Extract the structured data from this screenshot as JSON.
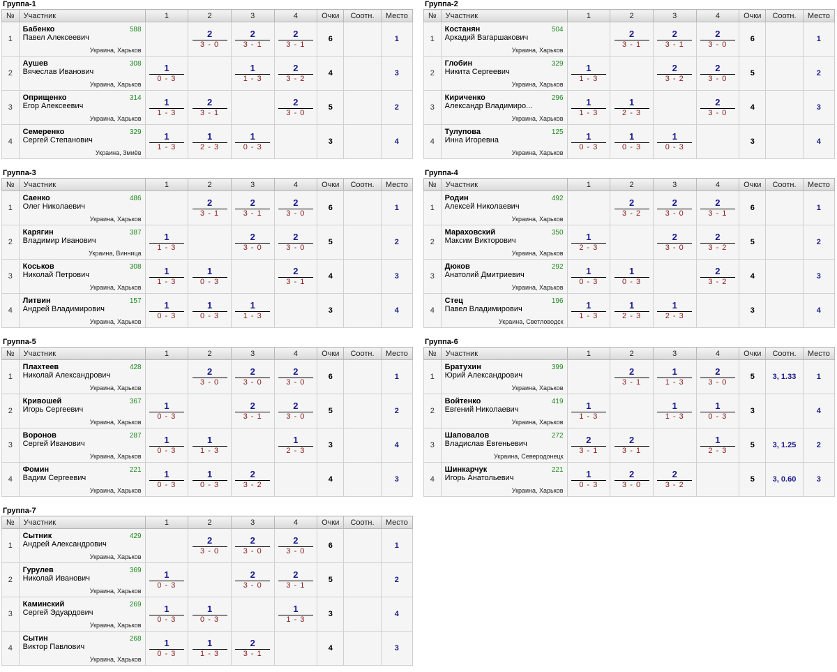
{
  "columns": {
    "num": "№",
    "player": "Участник",
    "m1": "1",
    "m2": "2",
    "m3": "3",
    "m4": "4",
    "points": "Очки",
    "ratio": "Соотн.",
    "place": "Место"
  },
  "groups": [
    {
      "title": "Группа-1",
      "players": [
        {
          "num": "1",
          "surname": "Бабенко",
          "name": "Павел Алексеевич",
          "rating": "588",
          "city": "Украина, Харьков",
          "results": [
            null,
            {
              "p": "2",
              "s": "3 - 0"
            },
            {
              "p": "2",
              "s": "3 - 1"
            },
            {
              "p": "2",
              "s": "3 - 1"
            }
          ],
          "points": "6",
          "ratio": "",
          "place": "1"
        },
        {
          "num": "2",
          "surname": "Аушев",
          "name": "Вячеслав Иванович",
          "rating": "308",
          "city": "Украина, Харьков",
          "results": [
            {
              "p": "1",
              "s": "0 - 3"
            },
            null,
            {
              "p": "1",
              "s": "1 - 3"
            },
            {
              "p": "2",
              "s": "3 - 2"
            }
          ],
          "points": "4",
          "ratio": "",
          "place": "3"
        },
        {
          "num": "3",
          "surname": "Оприщенко",
          "name": "Егор Алексеевич",
          "rating": "314",
          "city": "Украина, Харьков",
          "results": [
            {
              "p": "1",
              "s": "1 - 3"
            },
            {
              "p": "2",
              "s": "3 - 1"
            },
            null,
            {
              "p": "2",
              "s": "3 - 0"
            }
          ],
          "points": "5",
          "ratio": "",
          "place": "2"
        },
        {
          "num": "4",
          "surname": "Семеренко",
          "name": "Сергей Степанович",
          "rating": "329",
          "city": "Украина, Змиёв",
          "results": [
            {
              "p": "1",
              "s": "1 - 3"
            },
            {
              "p": "1",
              "s": "2 - 3"
            },
            {
              "p": "1",
              "s": "0 - 3"
            },
            null
          ],
          "points": "3",
          "ratio": "",
          "place": "4"
        }
      ]
    },
    {
      "title": "Группа-2",
      "players": [
        {
          "num": "1",
          "surname": "Костанян",
          "name": "Аркадий Вагаршакович",
          "rating": "504",
          "city": "Украина, Харьков",
          "results": [
            null,
            {
              "p": "2",
              "s": "3 - 1"
            },
            {
              "p": "2",
              "s": "3 - 1"
            },
            {
              "p": "2",
              "s": "3 - 0"
            }
          ],
          "points": "6",
          "ratio": "",
          "place": "1"
        },
        {
          "num": "2",
          "surname": "Глобин",
          "name": "Никита Сергеевич",
          "rating": "329",
          "city": "Украина, Харьков",
          "results": [
            {
              "p": "1",
              "s": "1 - 3"
            },
            null,
            {
              "p": "2",
              "s": "3 - 2"
            },
            {
              "p": "2",
              "s": "3 - 0"
            }
          ],
          "points": "5",
          "ratio": "",
          "place": "2"
        },
        {
          "num": "3",
          "surname": "Кириченко",
          "name": "Александр Владимиро...",
          "rating": "296",
          "city": "Украина, Харьков",
          "results": [
            {
              "p": "1",
              "s": "1 - 3"
            },
            {
              "p": "1",
              "s": "2 - 3"
            },
            null,
            {
              "p": "2",
              "s": "3 - 0"
            }
          ],
          "points": "4",
          "ratio": "",
          "place": "3"
        },
        {
          "num": "4",
          "surname": "Тулупова",
          "name": "Инна Игоревна",
          "rating": "125",
          "city": "Украина, Харьков",
          "results": [
            {
              "p": "1",
              "s": "0 - 3"
            },
            {
              "p": "1",
              "s": "0 - 3"
            },
            {
              "p": "1",
              "s": "0 - 3"
            },
            null
          ],
          "points": "3",
          "ratio": "",
          "place": "4"
        }
      ]
    },
    {
      "title": "Группа-3",
      "players": [
        {
          "num": "1",
          "surname": "Саенко",
          "name": "Олег Николаевич",
          "rating": "486",
          "city": "Украина, Харьков",
          "results": [
            null,
            {
              "p": "2",
              "s": "3 - 1"
            },
            {
              "p": "2",
              "s": "3 - 1"
            },
            {
              "p": "2",
              "s": "3 - 0"
            }
          ],
          "points": "6",
          "ratio": "",
          "place": "1"
        },
        {
          "num": "2",
          "surname": "Карягин",
          "name": "Владимир Иванович",
          "rating": "387",
          "city": "Украина, Винница",
          "results": [
            {
              "p": "1",
              "s": "1 - 3"
            },
            null,
            {
              "p": "2",
              "s": "3 - 0"
            },
            {
              "p": "2",
              "s": "3 - 0"
            }
          ],
          "points": "5",
          "ratio": "",
          "place": "2"
        },
        {
          "num": "3",
          "surname": "Коськов",
          "name": "Николай Петрович",
          "rating": "308",
          "city": "Украина, Харьков",
          "results": [
            {
              "p": "1",
              "s": "1 - 3"
            },
            {
              "p": "1",
              "s": "0 - 3"
            },
            null,
            {
              "p": "2",
              "s": "3 - 1"
            }
          ],
          "points": "4",
          "ratio": "",
          "place": "3"
        },
        {
          "num": "4",
          "surname": "Литвин",
          "name": "Андрей Владимирович",
          "rating": "157",
          "city": "Украина, Харьков",
          "results": [
            {
              "p": "1",
              "s": "0 - 3"
            },
            {
              "p": "1",
              "s": "0 - 3"
            },
            {
              "p": "1",
              "s": "1 - 3"
            },
            null
          ],
          "points": "3",
          "ratio": "",
          "place": "4"
        }
      ]
    },
    {
      "title": "Группа-4",
      "players": [
        {
          "num": "1",
          "surname": "Родин",
          "name": "Алексей Николаевич",
          "rating": "492",
          "city": "Украина, Харьков",
          "results": [
            null,
            {
              "p": "2",
              "s": "3 - 2"
            },
            {
              "p": "2",
              "s": "3 - 0"
            },
            {
              "p": "2",
              "s": "3 - 1"
            }
          ],
          "points": "6",
          "ratio": "",
          "place": "1"
        },
        {
          "num": "2",
          "surname": "Мараховский",
          "name": "Максим Викторович",
          "rating": "350",
          "city": "Украина, Харьков",
          "results": [
            {
              "p": "1",
              "s": "2 - 3"
            },
            null,
            {
              "p": "2",
              "s": "3 - 0"
            },
            {
              "p": "2",
              "s": "3 - 2"
            }
          ],
          "points": "5",
          "ratio": "",
          "place": "2"
        },
        {
          "num": "3",
          "surname": "Дюков",
          "name": "Анатолий Дмитриевич",
          "rating": "292",
          "city": "Украина, Харьков",
          "results": [
            {
              "p": "1",
              "s": "0 - 3"
            },
            {
              "p": "1",
              "s": "0 - 3"
            },
            null,
            {
              "p": "2",
              "s": "3 - 2"
            }
          ],
          "points": "4",
          "ratio": "",
          "place": "3"
        },
        {
          "num": "4",
          "surname": "Стец",
          "name": "Павел Владимирович",
          "rating": "196",
          "city": "Украина, Светловодск",
          "results": [
            {
              "p": "1",
              "s": "1 - 3"
            },
            {
              "p": "1",
              "s": "2 - 3"
            },
            {
              "p": "1",
              "s": "2 - 3"
            },
            null
          ],
          "points": "3",
          "ratio": "",
          "place": "4"
        }
      ]
    },
    {
      "title": "Группа-5",
      "players": [
        {
          "num": "1",
          "surname": "Плахтеев",
          "name": "Николай Александрович",
          "rating": "428",
          "city": "Украина, Харьков",
          "results": [
            null,
            {
              "p": "2",
              "s": "3 - 0"
            },
            {
              "p": "2",
              "s": "3 - 0"
            },
            {
              "p": "2",
              "s": "3 - 0"
            }
          ],
          "points": "6",
          "ratio": "",
          "place": "1"
        },
        {
          "num": "2",
          "surname": "Кривошей",
          "name": "Игорь Сергеевич",
          "rating": "367",
          "city": "Украина, Харьков",
          "results": [
            {
              "p": "1",
              "s": "0 - 3"
            },
            null,
            {
              "p": "2",
              "s": "3 - 1"
            },
            {
              "p": "2",
              "s": "3 - 0"
            }
          ],
          "points": "5",
          "ratio": "",
          "place": "2"
        },
        {
          "num": "3",
          "surname": "Воронов",
          "name": "Сергей Иванович",
          "rating": "287",
          "city": "Украина, Харьков",
          "results": [
            {
              "p": "1",
              "s": "0 - 3"
            },
            {
              "p": "1",
              "s": "1 - 3"
            },
            null,
            {
              "p": "1",
              "s": "2 - 3"
            }
          ],
          "points": "3",
          "ratio": "",
          "place": "4"
        },
        {
          "num": "4",
          "surname": "Фомин",
          "name": "Вадим Сергеевич",
          "rating": "221",
          "city": "Украина, Харьков",
          "results": [
            {
              "p": "1",
              "s": "0 - 3"
            },
            {
              "p": "1",
              "s": "0 - 3"
            },
            {
              "p": "2",
              "s": "3 - 2"
            },
            null
          ],
          "points": "4",
          "ratio": "",
          "place": "3"
        }
      ]
    },
    {
      "title": "Группа-6",
      "players": [
        {
          "num": "1",
          "surname": "Братухин",
          "name": "Юрий Александрович",
          "rating": "399",
          "city": "Украина, Харьков",
          "results": [
            null,
            {
              "p": "2",
              "s": "3 - 1"
            },
            {
              "p": "1",
              "s": "1 - 3"
            },
            {
              "p": "2",
              "s": "3 - 0"
            }
          ],
          "points": "5",
          "ratio": "3, 1.33",
          "place": "1"
        },
        {
          "num": "2",
          "surname": "Войтенко",
          "name": "Евгений Николаевич",
          "rating": "419",
          "city": "Украина, Харьков",
          "results": [
            {
              "p": "1",
              "s": "1 - 3"
            },
            null,
            {
              "p": "1",
              "s": "1 - 3"
            },
            {
              "p": "1",
              "s": "0 - 3"
            }
          ],
          "points": "3",
          "ratio": "",
          "place": "4"
        },
        {
          "num": "3",
          "surname": "Шаповалов",
          "name": "Владислав Евгеньевич",
          "rating": "272",
          "city": "Украина, Северодонецк",
          "results": [
            {
              "p": "2",
              "s": "3 - 1"
            },
            {
              "p": "2",
              "s": "3 - 1"
            },
            null,
            {
              "p": "1",
              "s": "2 - 3"
            }
          ],
          "points": "5",
          "ratio": "3, 1.25",
          "place": "2"
        },
        {
          "num": "4",
          "surname": "Шинкарчук",
          "name": "Игорь Анатольевич",
          "rating": "221",
          "city": "Украина, Харьков",
          "results": [
            {
              "p": "1",
              "s": "0 - 3"
            },
            {
              "p": "2",
              "s": "3 - 0"
            },
            {
              "p": "2",
              "s": "3 - 2"
            },
            null
          ],
          "points": "5",
          "ratio": "3, 0.60",
          "place": "3"
        }
      ]
    },
    {
      "title": "Группа-7",
      "players": [
        {
          "num": "1",
          "surname": "Сытник",
          "name": "Андрей Александрович",
          "rating": "429",
          "city": "Украина, Харьков",
          "results": [
            null,
            {
              "p": "2",
              "s": "3 - 0"
            },
            {
              "p": "2",
              "s": "3 - 0"
            },
            {
              "p": "2",
              "s": "3 - 0"
            }
          ],
          "points": "6",
          "ratio": "",
          "place": "1"
        },
        {
          "num": "2",
          "surname": "Гурулев",
          "name": "Николай Иванович",
          "rating": "369",
          "city": "Украина, Харьков",
          "results": [
            {
              "p": "1",
              "s": "0 - 3"
            },
            null,
            {
              "p": "2",
              "s": "3 - 0"
            },
            {
              "p": "2",
              "s": "3 - 1"
            }
          ],
          "points": "5",
          "ratio": "",
          "place": "2"
        },
        {
          "num": "3",
          "surname": "Каминский",
          "name": "Сергей Эдуардович",
          "rating": "269",
          "city": "Украина, Харьков",
          "results": [
            {
              "p": "1",
              "s": "0 - 3"
            },
            {
              "p": "1",
              "s": "0 - 3"
            },
            null,
            {
              "p": "1",
              "s": "1 - 3"
            }
          ],
          "points": "3",
          "ratio": "",
          "place": "4"
        },
        {
          "num": "4",
          "surname": "Сытин",
          "name": "Виктор Павлович",
          "rating": "268",
          "city": "Украина, Харьков",
          "results": [
            {
              "p": "1",
              "s": "0 - 3"
            },
            {
              "p": "1",
              "s": "1 - 3"
            },
            {
              "p": "2",
              "s": "3 - 1"
            },
            null
          ],
          "points": "4",
          "ratio": "",
          "place": "3"
        }
      ]
    }
  ]
}
